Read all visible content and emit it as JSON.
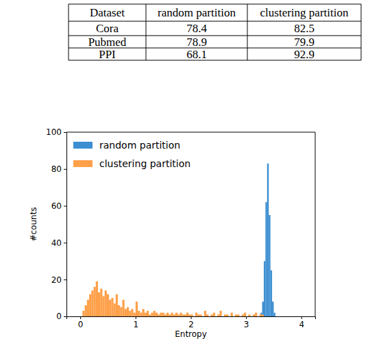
{
  "table": {
    "columns": [
      "Dataset",
      "random partition",
      "clustering partition"
    ],
    "rows": [
      [
        "Cora",
        78.4,
        82.5
      ],
      [
        "Pubmed",
        78.9,
        79.9
      ],
      [
        "PPI",
        68.1,
        92.9
      ]
    ]
  },
  "chart_data": {
    "type": "histogram",
    "x_label": "Entropy",
    "y_label": "#counts",
    "xlim": [
      -0.25,
      4.25
    ],
    "xticks": [
      0,
      1,
      2,
      3,
      4
    ],
    "ylim": [
      0,
      100
    ],
    "yticks": [
      0,
      20,
      40,
      60,
      80,
      100
    ],
    "legend": "upper left",
    "series": [
      {
        "name": "random partition",
        "color": "#3d8fd1",
        "bins": [
          3.26,
          3.29,
          3.32,
          3.35,
          3.38,
          3.41,
          3.44,
          3.47,
          3.5,
          3.53
        ],
        "values": [
          2,
          8,
          30,
          62,
          83,
          55,
          25,
          8,
          2
        ]
      },
      {
        "name": "clustering partition",
        "color": "#ffa04a",
        "bins": [
          0.04,
          0.08,
          0.12,
          0.16,
          0.2,
          0.24,
          0.28,
          0.32,
          0.36,
          0.4,
          0.44,
          0.48,
          0.52,
          0.56,
          0.6,
          0.64,
          0.68,
          0.72,
          0.76,
          0.8,
          0.84,
          0.88,
          0.92,
          0.96,
          1.0,
          1.04,
          1.08,
          1.12,
          1.16,
          1.2,
          1.24,
          1.28,
          1.32,
          1.36,
          1.4,
          1.44,
          1.48,
          1.52,
          1.56,
          1.6,
          1.64,
          1.68,
          1.72,
          1.76,
          1.8,
          1.84,
          1.88,
          1.92,
          1.96,
          2.0,
          2.04,
          2.08,
          2.12,
          2.16,
          2.2,
          2.24,
          2.28,
          2.32,
          2.36,
          2.4,
          2.44,
          2.48,
          2.52,
          2.56,
          2.6,
          2.64,
          2.68,
          2.72,
          2.76,
          2.8,
          2.84,
          2.88,
          2.92,
          2.96,
          3.0,
          3.04,
          3.08,
          3.12,
          3.16,
          3.2,
          3.24,
          3.28,
          3.32
        ],
        "values": [
          3,
          6,
          9,
          12,
          14,
          16,
          19,
          13,
          15,
          11,
          14,
          12,
          9,
          10,
          7,
          12,
          6,
          5,
          9,
          4,
          5,
          3,
          4,
          2,
          8,
          3,
          2,
          4,
          2,
          3,
          1,
          2,
          3,
          2,
          1,
          2,
          2,
          1,
          2,
          1,
          2,
          1,
          2,
          1,
          2,
          1,
          1,
          2,
          1,
          1,
          0,
          2,
          1,
          1,
          0,
          3,
          1,
          0,
          1,
          2,
          0,
          1,
          3,
          0,
          1,
          1,
          0,
          2,
          0,
          1,
          1,
          0,
          1,
          2,
          0,
          1,
          0,
          1,
          2,
          0,
          1,
          1
        ]
      }
    ]
  }
}
